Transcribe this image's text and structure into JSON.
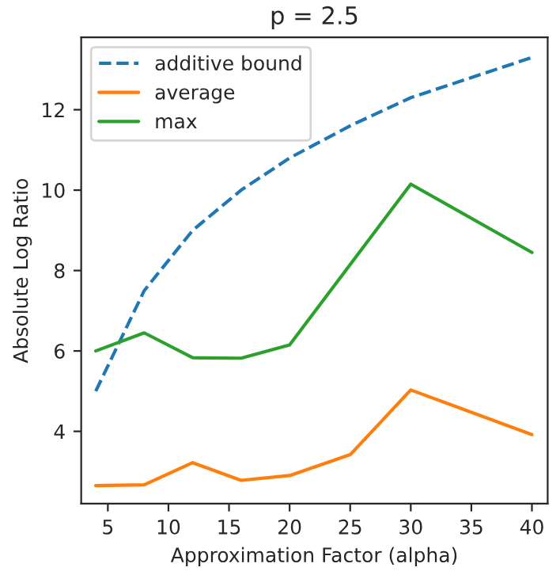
{
  "chart_data": {
    "type": "line",
    "title": "p = 2.5",
    "xlabel": "Approximation Factor (alpha)",
    "ylabel": "Absolute Log Ratio",
    "x": [
      4,
      8,
      12,
      16,
      20,
      25,
      30,
      40
    ],
    "series": [
      {
        "name": "additive bound",
        "color": "#1f77b4",
        "line_style": "dashed",
        "values": [
          5.0,
          7.5,
          9.0,
          10.0,
          10.8,
          11.6,
          12.3,
          13.3
        ]
      },
      {
        "name": "average",
        "color": "#ff7f0e",
        "line_style": "solid",
        "values": [
          2.65,
          2.67,
          3.22,
          2.78,
          2.9,
          3.42,
          5.03,
          3.92
        ]
      },
      {
        "name": "max",
        "color": "#2ca02c",
        "line_style": "solid",
        "values": [
          6.0,
          6.45,
          5.83,
          5.82,
          6.15,
          8.15,
          10.15,
          8.45
        ]
      }
    ],
    "xlim": [
      2.8,
      41.3
    ],
    "ylim": [
      2.2,
      13.8
    ],
    "xticks": [
      5,
      10,
      15,
      20,
      25,
      30,
      35,
      40
    ],
    "yticks": [
      4,
      6,
      8,
      10,
      12
    ],
    "legend": "top left",
    "grid": false
  }
}
